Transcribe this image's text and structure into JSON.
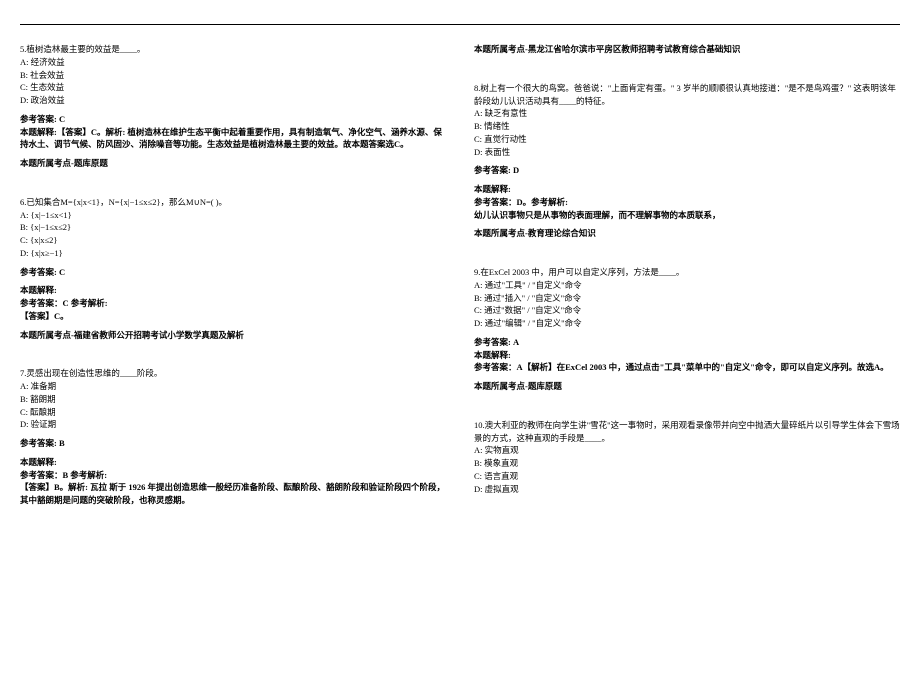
{
  "left": {
    "q5": {
      "stem": "5.植树造林最主要的效益是____。",
      "opts": [
        "A: 经济效益",
        "B: 社会效益",
        "C: 生态效益",
        "D: 政治效益"
      ],
      "ansLabel": "参考答案: C",
      "explLabel": "本题解释:【答案】C。解析: 植树造林在维护生态平衡中起着重要作用，具有制造氧气、净化空气、涵养水源、保持水土、调节气候、防风固沙、消除噪音等功能。生态效益是植树造林最主要的效益。故本题答案选C。",
      "point": "本题所属考点-题库原题"
    },
    "q6": {
      "stem": "6.已知集合M={x|x<1}，N={x|−1≤x≤2}，那么M∪N=(    )。",
      "opts": [
        "A: {x|−1≤x<1}",
        "B: {x|−1≤x≤2}",
        "C: {x|x≤2}",
        "D: {x|x≥−1}"
      ],
      "ansLabel": "参考答案: C",
      "explTitle": "本题解释:",
      "explRef": "参考答案：C 参考解析:",
      "explBody": "【答案】C。",
      "point": "本题所属考点-福建省教师公开招聘考试小学数学真题及解析"
    },
    "q7": {
      "stem": "7.灵感出现在创造性思维的____阶段。",
      "opts": [
        "A: 准备期",
        "B: 豁朗期",
        "C: 酝酿期",
        "D: 验证期"
      ],
      "ansLabel": "参考答案: B",
      "explTitle": "本题解释:",
      "explRef": "参考答案：B 参考解析:",
      "explBody": "【答案】B。解析: 瓦拉 斯于 1926 年提出创造思维一般经历准备阶段、酝酿阶段、豁朗阶段和验证阶段四个阶段，其中豁朗期是问题的突破阶段，也称灵感期。"
    }
  },
  "right": {
    "pointTop": "本题所属考点-黑龙江省哈尔滨市平房区教师招聘考试教育综合基础知识",
    "q8": {
      "stem": "8.树上有一个很大的鸟窝。爸爸说：\"上面肯定有蛋。\" 3 岁半的顺顺很认真地接道：\"是不是鸟鸡蛋？\" 这表明该年龄段幼儿认识活动具有____的特征。",
      "opts": [
        "A: 缺乏有意性",
        "B: 情绪性",
        "C: 直觉行动性",
        "D: 表面性"
      ],
      "ansLabel": "参考答案: D",
      "explTitle": "本题解释:",
      "explRef": "参考答案：D。参考解析:",
      "explBody": "幼儿认识事物只是从事物的表面理解，而不理解事物的本质联系，",
      "point": "本题所属考点-教育理论综合知识"
    },
    "q9": {
      "stem": "9.在ExCel 2003 中，用户可以自定义序列，方法是____。",
      "opts": [
        "A: 通过\"工具\" / \"自定义\"命令",
        "B: 通过\"插入\" / \"自定义\"命令",
        "C: 通过\"数据\" / \"自定义\"命令",
        "D: 通过\"编辑\" / \"自定义\"命令"
      ],
      "ansLabel": "参考答案: A",
      "explTitle": "本题解释:",
      "explBody": "参考答案：A【解析】在ExCel 2003 中，通过点击\"工具\"菜单中的\"自定义\"命令，即可以自定义序列。故选A。",
      "point": "本题所属考点-题库原题"
    },
    "q10": {
      "stem": "10.澳大利亚的教师在向学生讲\"雪花\"这一事物时，采用观看录像带并向空中抛洒大量碎纸片以引导学生体会下雪场景的方式，这种直观的手段是____。",
      "opts": [
        "A: 实物直观",
        "B: 模象直观",
        "C: 语言直观",
        "D: 虚拟直观"
      ]
    }
  }
}
